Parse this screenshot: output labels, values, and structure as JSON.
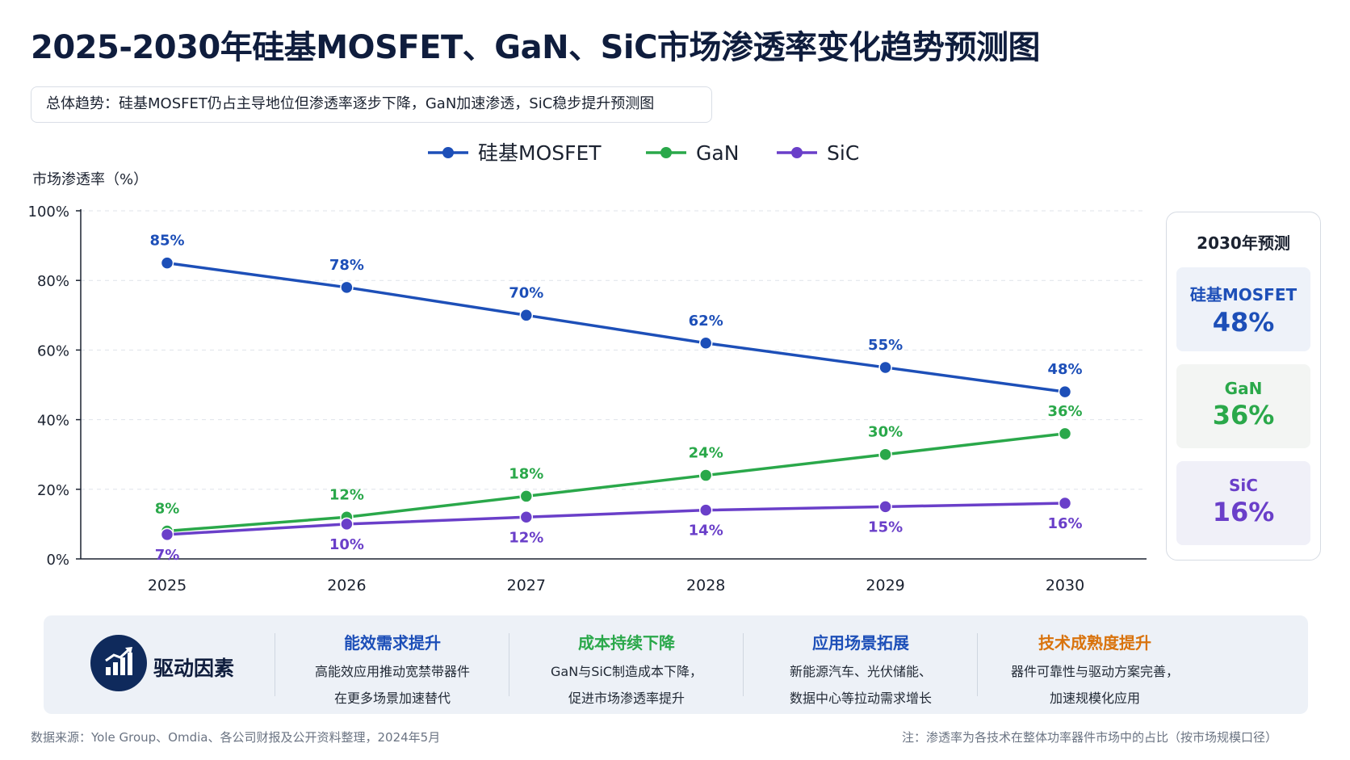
{
  "title": "2025-2030年硅基MOSFET、GaN、SiC市场渗透率变化趋势预测图",
  "summary": "总体趋势：硅基MOSFET仍占主导地位但渗透率逐步下降，GaN加速渗透，SiC稳步提升预测图",
  "colors": {
    "mosfet": "#1d4fb8",
    "gan": "#2aa84a",
    "sic": "#6a3fc9",
    "tech_title": "#d9730d"
  },
  "chart_data": {
    "type": "line",
    "ylabel": "市场渗透率（%）",
    "xlabel": "",
    "x": [
      "2025",
      "2026",
      "2027",
      "2028",
      "2029",
      "2030"
    ],
    "ylim": [
      0,
      100
    ],
    "yticks": [
      "0%",
      "20%",
      "40%",
      "60%",
      "80%",
      "100%"
    ],
    "grid": true,
    "legend_position": "top-center",
    "series": [
      {
        "name": "硅基MOSFET",
        "values": [
          85,
          78,
          70,
          62,
          55,
          48
        ],
        "labels": [
          "85%",
          "78%",
          "70%",
          "62%",
          "55%",
          "48%"
        ],
        "color": "#1d4fb8"
      },
      {
        "name": "GaN",
        "values": [
          8,
          12,
          18,
          24,
          30,
          36
        ],
        "labels": [
          "8%",
          "12%",
          "18%",
          "24%",
          "30%",
          "36%"
        ],
        "color": "#2aa84a"
      },
      {
        "name": "SiC",
        "values": [
          7,
          10,
          12,
          14,
          15,
          16
        ],
        "labels": [
          "7%",
          "10%",
          "12%",
          "14%",
          "15%",
          "16%"
        ],
        "color": "#6a3fc9"
      }
    ]
  },
  "prediction": {
    "title": "2030年预测",
    "items": [
      {
        "name": "硅基MOSFET",
        "value": "48%"
      },
      {
        "name": "GaN",
        "value": "36%"
      },
      {
        "name": "SiC",
        "value": "16%"
      }
    ]
  },
  "drivers": {
    "label": "驱动因素",
    "icon": "bar-chart-up-icon",
    "items": [
      {
        "title": "能效需求提升",
        "lines": [
          "高能效应用推动宽禁带器件",
          "在更多场景加速替代"
        ]
      },
      {
        "title": "成本持续下降",
        "lines": [
          "GaN与SiC制造成本下降，",
          "促进市场渗透率提升"
        ]
      },
      {
        "title": "应用场景拓展",
        "lines": [
          "新能源汽车、光伏储能、",
          "数据中心等拉动需求增长"
        ]
      },
      {
        "title": "技术成熟度提升",
        "lines": [
          "器件可靠性与驱动方案完善，",
          "加速规模化应用"
        ]
      }
    ]
  },
  "footer": {
    "source": "数据来源：Yole Group、Omdia、各公司财报及公开资料整理，2024年5月",
    "note": "注：渗透率为各技术在整体功率器件市场中的占比（按市场规模口径）"
  }
}
